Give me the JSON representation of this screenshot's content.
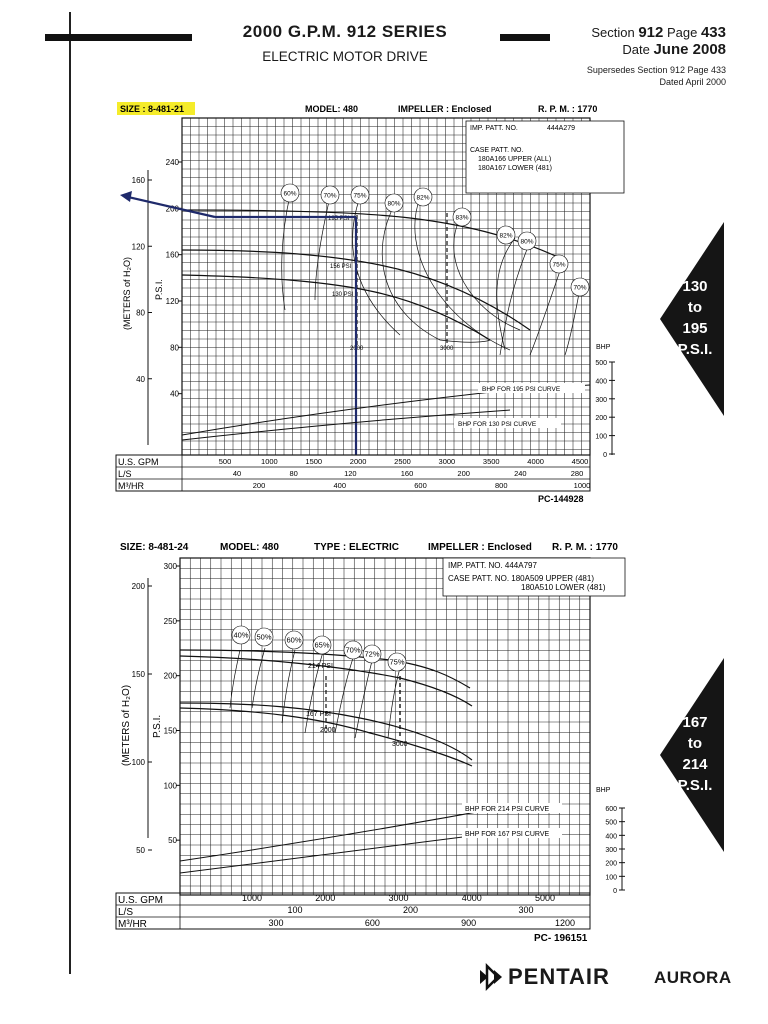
{
  "header": {
    "title": "2000 G.P.M. 912 SERIES",
    "subtitle": "ELECTRIC MOTOR DRIVE",
    "section_label": "Section",
    "section_value": "912",
    "page_label": "Page",
    "page_value": "433",
    "date_label": "Date",
    "date_value": "June 2008",
    "supersedes_line1": "Supersedes Section 912 Page 433",
    "supersedes_line2": "Dated April 2000"
  },
  "badges": [
    {
      "from": "130",
      "to_word": "to",
      "to": "195",
      "unit": "P.S.I."
    },
    {
      "from": "167",
      "to_word": "to",
      "to": "214",
      "unit": "P.S.I."
    }
  ],
  "brand": {
    "pentair": "PENTAIR",
    "aurora": "AURORA"
  },
  "chart1": {
    "size": "SIZE : 8-481-21",
    "model": "MODEL: 480",
    "impeller": "IMPELLER : Enclosed",
    "rpm": "R. P. M. : 1770",
    "patt_imp": "IMP. PATT. NO.",
    "patt_imp_val": "444A279",
    "case_patt": "CASE PATT. NO.",
    "case_upper": "180A166  UPPER (ALL)",
    "case_lower": "180A167  LOWER (481)",
    "meters_label": "(METERS of H₂O)",
    "psi_label": "P.S.I.",
    "bhp_label": "BHP",
    "bhp_195": "BHP FOR 195 PSI CURVE",
    "bhp_130": "BHP FOR 130 PSI CURVE",
    "label_195": "195 PSI",
    "label_156": "156 PSI",
    "label_130": "130 PSI",
    "label_2000": "2000",
    "label_3000": "3000",
    "code": "PC-144928",
    "gpm_label": "U.S. GPM",
    "ls_label": "L/S",
    "m3_label": "M³/HR",
    "gpm_ticks": [
      "500",
      "1000",
      "1500",
      "2000",
      "2500",
      "3000",
      "3500",
      "4000",
      "4500"
    ],
    "ls_ticks": [
      "40",
      "80",
      "120",
      "160",
      "200",
      "240",
      "280"
    ],
    "m3_ticks": [
      "200",
      "400",
      "600",
      "800",
      "1000"
    ],
    "meters_ticks": [
      "40",
      "80",
      "120",
      "160"
    ],
    "psi_ticks": [
      "40",
      "80",
      "120",
      "160",
      "200",
      "240"
    ],
    "bhp_ticks": [
      "500",
      "400",
      "300",
      "200",
      "100",
      "0"
    ],
    "eff": [
      "60%",
      "70%",
      "75%",
      "80%",
      "82%",
      "83%",
      "82%",
      "80%",
      "75%",
      "70%"
    ]
  },
  "chart2": {
    "size": "SIZE: 8-481-24",
    "model": "MODEL: 480",
    "type": "TYPE : ELECTRIC",
    "impeller": "IMPELLER : Enclosed",
    "rpm": "R. P. M. :  1770",
    "patt_imp": "IMP. PATT. NO.  444A797",
    "case_patt": "CASE PATT. NO. 180A509 UPPER  (481)",
    "case_lower": "180A510 LOWER (481)",
    "meters_label": "(METERS of H₂O)",
    "psi_label": "P.S.I.",
    "bhp_label": "BHP",
    "bhp_214": "BHP FOR 214 PSI CURVE",
    "bhp_167": "BHP FOR 167 PSI CURVE",
    "label_214": "214 PSI",
    "label_167": "167 PSI",
    "label_2000": "2000",
    "label_3000": "3000",
    "code": "PC- 196151",
    "gpm_label": "U.S. GPM",
    "ls_label": "L/S",
    "m3_label": "M³/HR",
    "gpm_ticks": [
      "1000",
      "2000",
      "3000",
      "4000",
      "5000"
    ],
    "ls_ticks": [
      "100",
      "200",
      "300"
    ],
    "m3_ticks": [
      "300",
      "600",
      "900",
      "1200"
    ],
    "meters_ticks": [
      "50",
      "100",
      "150",
      "200"
    ],
    "psi_ticks": [
      "50",
      "100",
      "150",
      "200",
      "250",
      "300"
    ],
    "bhp_ticks": [
      "600",
      "500",
      "400",
      "300",
      "200",
      "100",
      "0"
    ],
    "eff": [
      "40%",
      "50%",
      "60%",
      "65%",
      "70%",
      "72%",
      "75%"
    ]
  },
  "colors": {
    "accent": "#1f2a6b",
    "highlight": "#f5ec2a",
    "ink": "#1a1a1a"
  }
}
